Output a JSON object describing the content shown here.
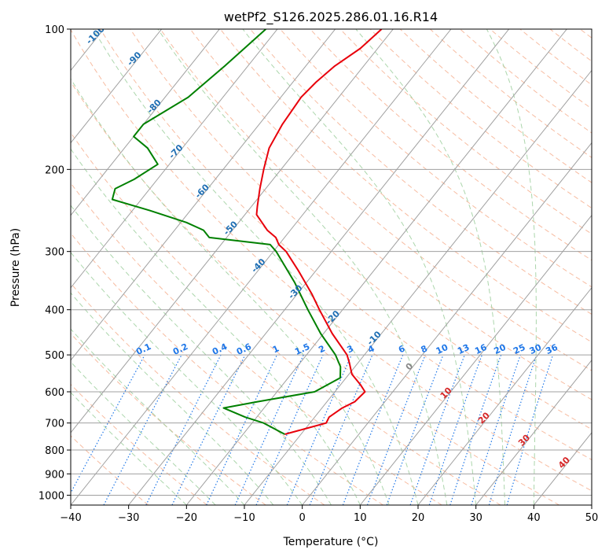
{
  "chart_data": {
    "type": "line",
    "title": "wetPf2_S126.2025.286.01.16.R14",
    "xlabel": "Temperature (°C)",
    "ylabel": "Pressure (hPa)",
    "xlim": [
      -40,
      50
    ],
    "ylim": [
      1050,
      100
    ],
    "y_scale": "log",
    "grid": true,
    "x_ticks": [
      "−40",
      "−30",
      "−20",
      "−10",
      "0",
      "10",
      "20",
      "30",
      "40",
      "50"
    ],
    "x_tick_values": [
      -40,
      -30,
      -20,
      -10,
      0,
      10,
      20,
      30,
      40,
      50
    ],
    "y_ticks": [
      "100",
      "200",
      "300",
      "400",
      "500",
      "600",
      "700",
      "800",
      "900",
      "1000"
    ],
    "y_tick_values": [
      100,
      200,
      300,
      400,
      500,
      600,
      700,
      800,
      900,
      1000
    ],
    "skew_note": "skewed temperature axis",
    "colors": {
      "temperature": "#e8000b",
      "dewpoint": "#008000",
      "isotherm": "#a0a0a0",
      "dry_adiabat": "#f4a582",
      "moist_adiabat": "#9ecf9e",
      "mixing_ratio": "#1f77e8",
      "isotherm_label": "#1f6fb4",
      "warm_label": "#d62728"
    },
    "series": [
      {
        "name": "",
        "role": "temperature",
        "points": [
          [
            100,
            -52
          ],
          [
            110,
            -53
          ],
          [
            120,
            -55
          ],
          [
            130,
            -56
          ],
          [
            140,
            -56.5
          ],
          [
            160,
            -56
          ],
          [
            180,
            -55
          ],
          [
            200,
            -53
          ],
          [
            220,
            -51
          ],
          [
            240,
            -49
          ],
          [
            250,
            -48
          ],
          [
            270,
            -44
          ],
          [
            280,
            -41.5
          ],
          [
            290,
            -40
          ],
          [
            300,
            -37.8
          ],
          [
            330,
            -33
          ],
          [
            370,
            -27.5
          ],
          [
            400,
            -24
          ],
          [
            450,
            -18.5
          ],
          [
            500,
            -13
          ],
          [
            520,
            -11.5
          ],
          [
            550,
            -9.5
          ],
          [
            580,
            -6.5
          ],
          [
            600,
            -4.8
          ],
          [
            630,
            -5.2
          ],
          [
            650,
            -6.5
          ],
          [
            680,
            -7.5
          ],
          [
            700,
            -7.2
          ],
          [
            720,
            -10
          ],
          [
            740,
            -12.8
          ]
        ]
      },
      {
        "name": "",
        "role": "dewpoint",
        "points": [
          [
            100,
            -72
          ],
          [
            120,
            -74
          ],
          [
            140,
            -76
          ],
          [
            160,
            -80
          ],
          [
            170,
            -80
          ],
          [
            180,
            -76
          ],
          [
            195,
            -72
          ],
          [
            210,
            -74
          ],
          [
            220,
            -76
          ],
          [
            232,
            -75
          ],
          [
            245,
            -67
          ],
          [
            260,
            -59
          ],
          [
            270,
            -55
          ],
          [
            280,
            -53
          ],
          [
            290,
            -41.5
          ],
          [
            300,
            -39.5
          ],
          [
            350,
            -32
          ],
          [
            400,
            -26
          ],
          [
            450,
            -20.5
          ],
          [
            500,
            -15
          ],
          [
            530,
            -12.5
          ],
          [
            560,
            -11
          ],
          [
            600,
            -13.5
          ],
          [
            630,
            -22
          ],
          [
            650,
            -27
          ],
          [
            680,
            -22
          ],
          [
            700,
            -18
          ],
          [
            740,
            -12.8
          ]
        ]
      }
    ],
    "isotherm_labels": [
      "-100",
      "-90",
      "-80",
      "-70",
      "-60",
      "-50",
      "-40",
      "-30",
      "-20",
      "-10"
    ],
    "isotherm_label_values": [
      -100,
      -90,
      -80,
      -70,
      -60,
      -50,
      -40,
      -30,
      -20,
      -10
    ],
    "mixing_ratio_labels": [
      "0.1",
      "0.2",
      "0.4",
      "0.6",
      "1",
      "1.5",
      "2",
      "3",
      "4",
      "6",
      "8",
      "10",
      "13",
      "16",
      "20",
      "25",
      "30",
      "36"
    ],
    "mixing_ratio_values": [
      0.1,
      0.2,
      0.4,
      0.6,
      1,
      1.5,
      2,
      3,
      4,
      6,
      8,
      10,
      13,
      16,
      20,
      25,
      30,
      36
    ],
    "warm_labels": [
      "0",
      "10",
      "20",
      "30",
      "40"
    ],
    "warm_label_values": [
      0,
      10,
      20,
      30,
      40
    ]
  }
}
